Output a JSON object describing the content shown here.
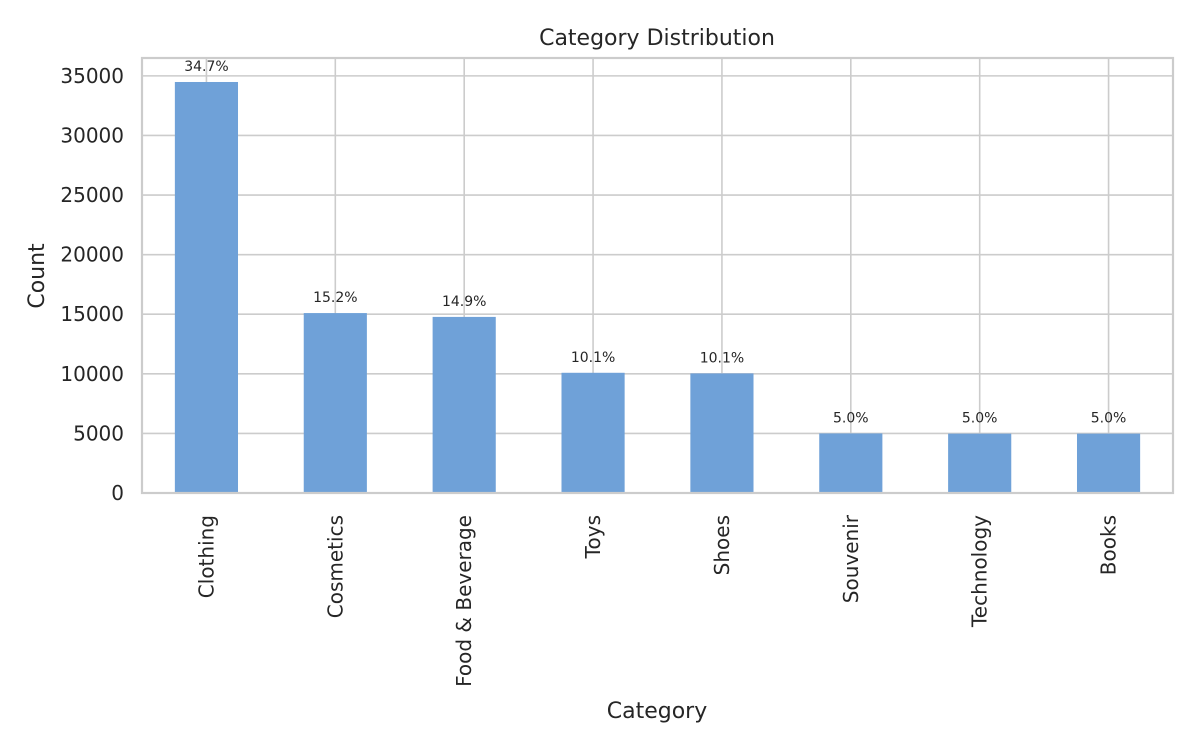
{
  "chart_data": {
    "type": "bar",
    "title": "Category Distribution",
    "xlabel": "Category",
    "ylabel": "Count",
    "categories": [
      "Clothing",
      "Cosmetics",
      "Food & Beverage",
      "Toys",
      "Shoes",
      "Souvenir",
      "Technology",
      "Books"
    ],
    "values": [
      34487,
      15097,
      14776,
      10087,
      10034,
      4999,
      4981,
      4981
    ],
    "data_labels": [
      "34.7%",
      "15.2%",
      "14.9%",
      "10.1%",
      "10.1%",
      "5.0%",
      "5.0%",
      "5.0%"
    ],
    "ylim": [
      0,
      36500
    ],
    "yticks": [
      0,
      5000,
      10000,
      15000,
      20000,
      25000,
      30000,
      35000
    ],
    "grid": true,
    "bar_color": "#6fa1d8"
  }
}
